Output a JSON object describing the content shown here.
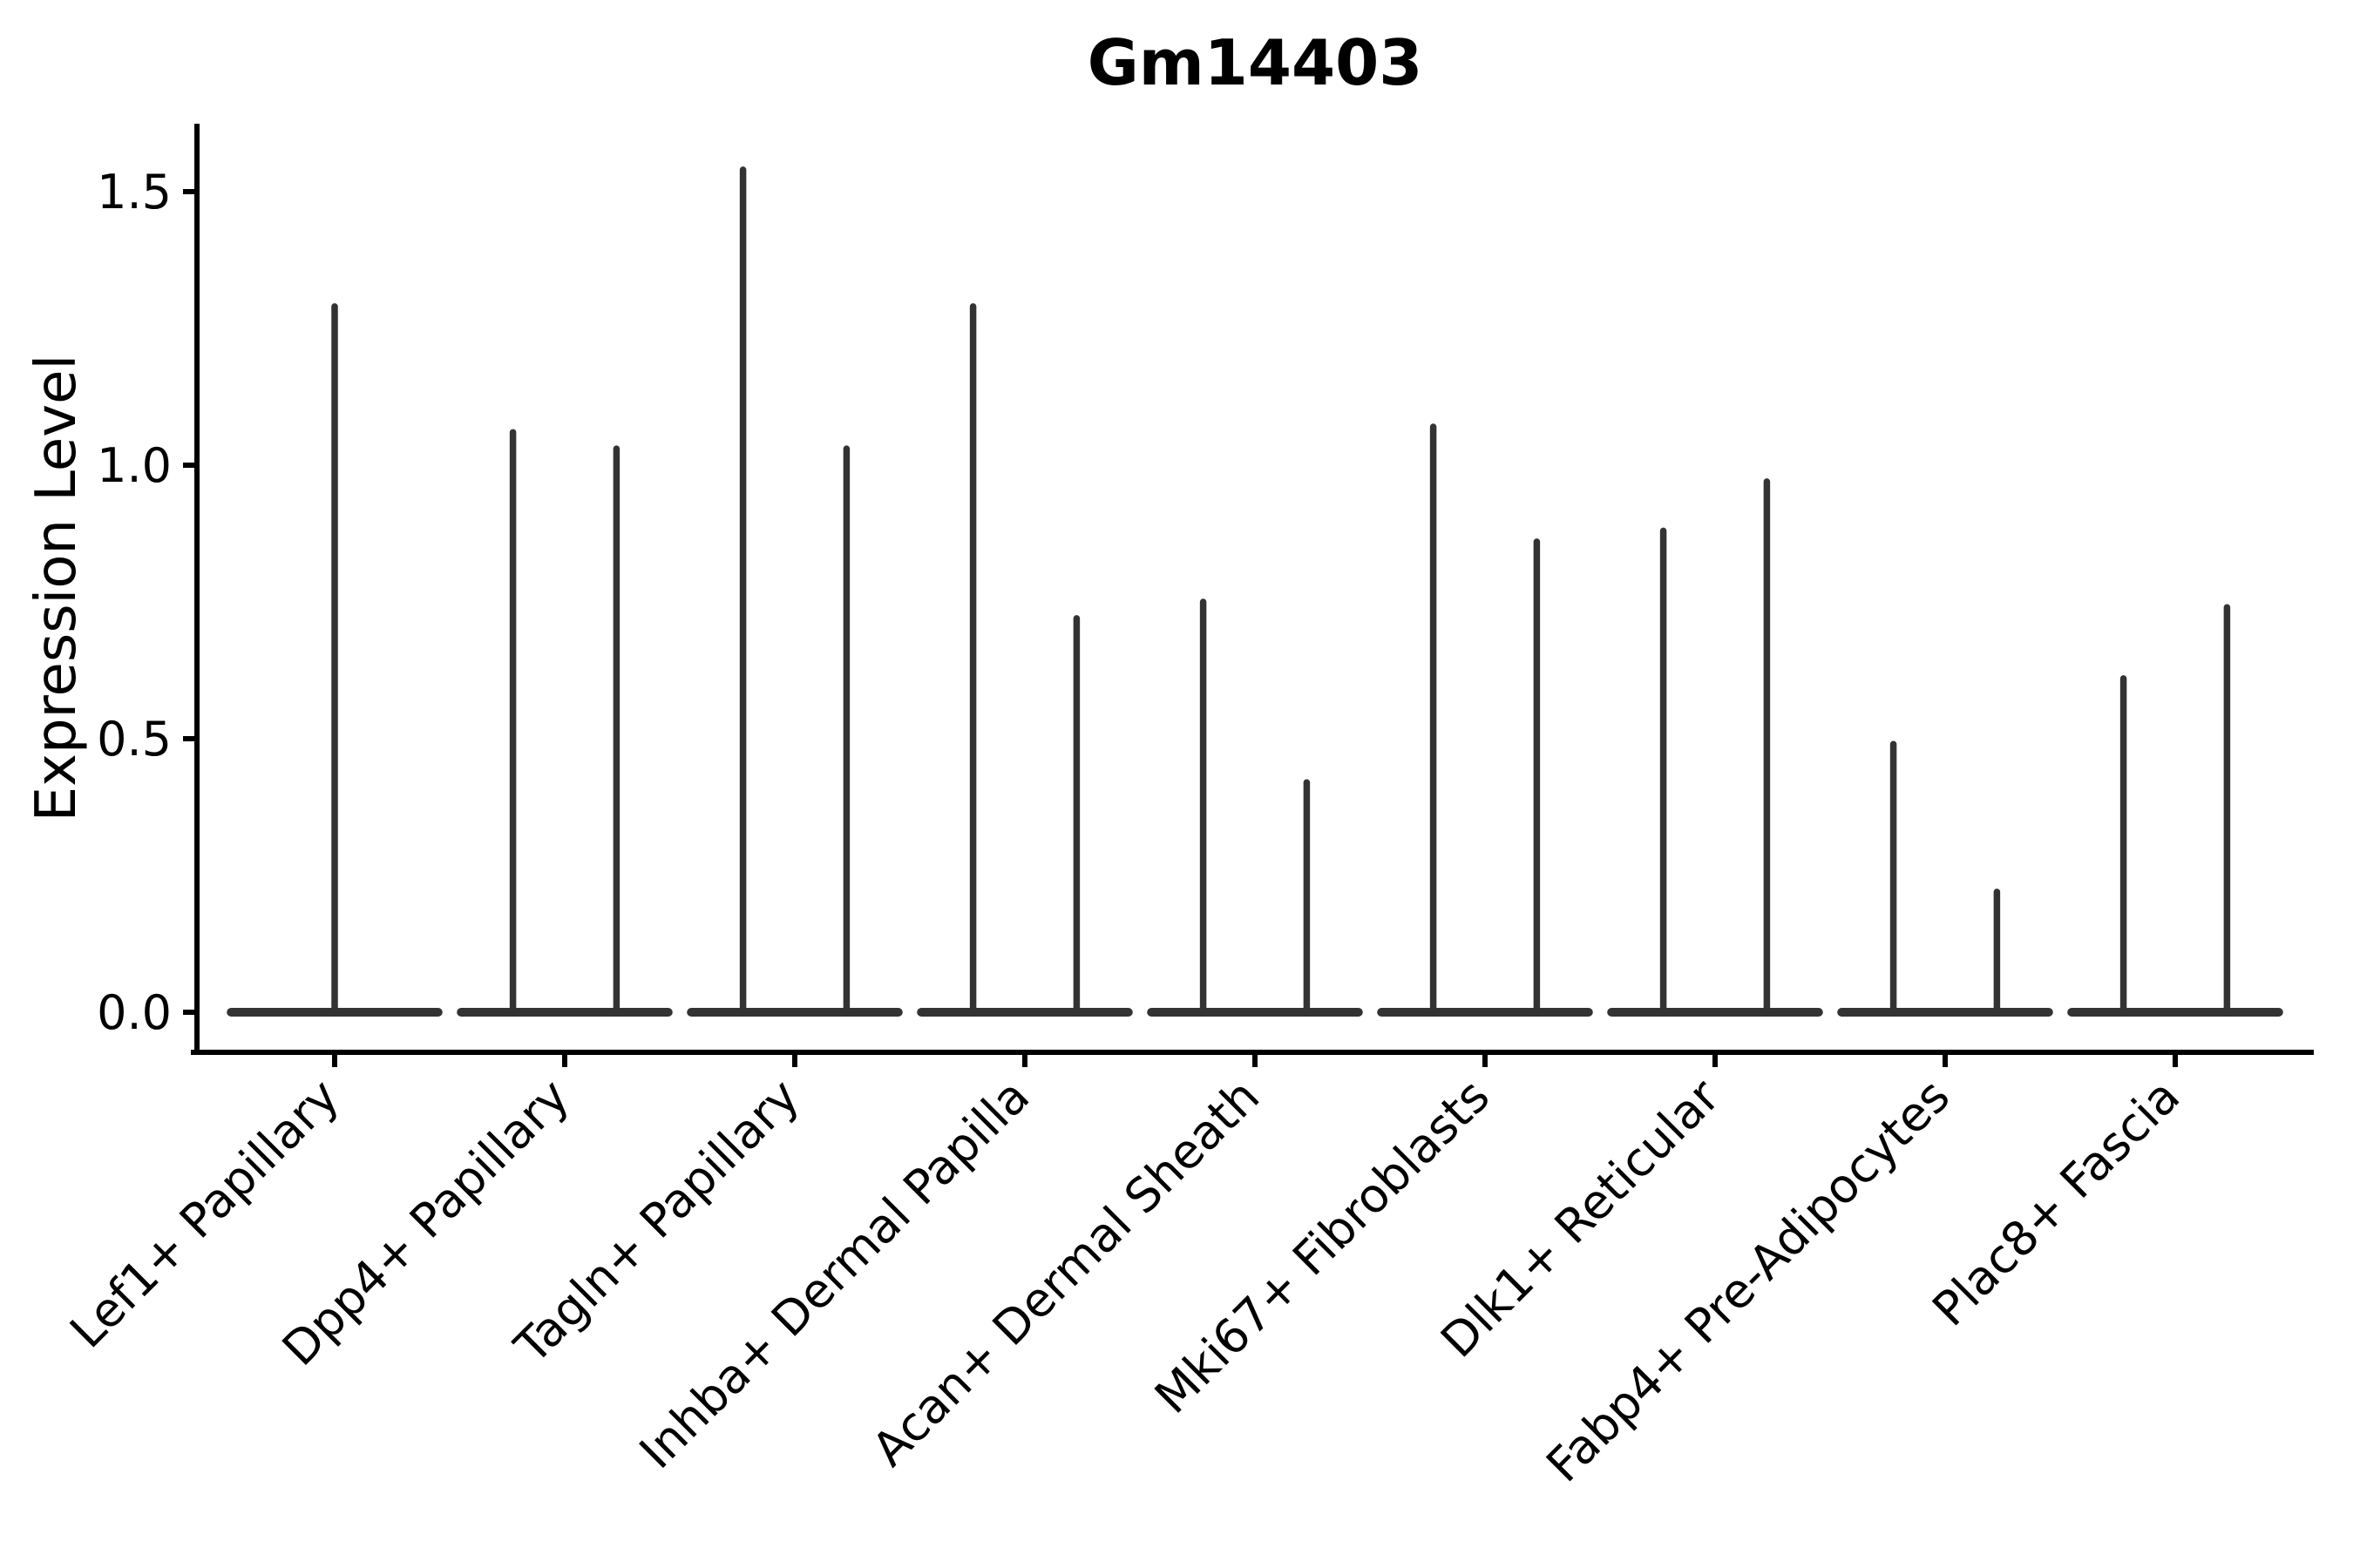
{
  "title": "Gm14403",
  "y_axis": {
    "label": "Expression Level",
    "tick_labels": [
      "0.0",
      "0.5",
      "1.0",
      "1.5"
    ]
  },
  "colors": {
    "violin": "#333333",
    "axis": "#000000",
    "text": "#000000",
    "background": "#ffffff"
  },
  "chart_data": {
    "type": "violin",
    "title": "Gm14403",
    "ylabel": "Expression Level",
    "xlabel": "",
    "grid": false,
    "legend": false,
    "ylim": [
      -0.07,
      1.62
    ],
    "y_tick_values": [
      0.0,
      0.5,
      1.0,
      1.5
    ],
    "categories": [
      "Lef1+ Papillary",
      "Dpp4+ Papillary",
      "Tagln+ Papillary",
      "Inhba+ Dermal Papilla",
      "Acan+ Dermal Sheath",
      "Mki67+ Fibroblasts",
      "Dlk1+ Reticular",
      "Fabp4+ Pre-Adipocytes",
      "Plac8+ Fascia"
    ],
    "series": [
      {
        "category": "Lef1+ Papillary",
        "spike_maxima": [
          1.29
        ]
      },
      {
        "category": "Dpp4+ Papillary",
        "spike_maxima": [
          1.06,
          1.03
        ]
      },
      {
        "category": "Tagln+ Papillary",
        "spike_maxima": [
          1.54,
          1.03
        ]
      },
      {
        "category": "Inhba+ Dermal Papilla",
        "spike_maxima": [
          1.29,
          0.72
        ]
      },
      {
        "category": "Acan+ Dermal Sheath",
        "spike_maxima": [
          0.75,
          0.42
        ]
      },
      {
        "category": "Mki67+ Fibroblasts",
        "spike_maxima": [
          1.07,
          0.86
        ]
      },
      {
        "category": "Dlk1+ Reticular",
        "spike_maxima": [
          0.88,
          0.97
        ]
      },
      {
        "category": "Fabp4+ Pre-Adipocytes",
        "spike_maxima": [
          0.49,
          0.22
        ]
      },
      {
        "category": "Plac8+ Fascia",
        "spike_maxima": [
          0.61,
          0.74
        ]
      }
    ],
    "shape_note": "Each violin is a zero-inflated density: a wide flat base at y=0 spanning the violin width, with a single thin vertical spike rising to the listed maximum expression value."
  }
}
